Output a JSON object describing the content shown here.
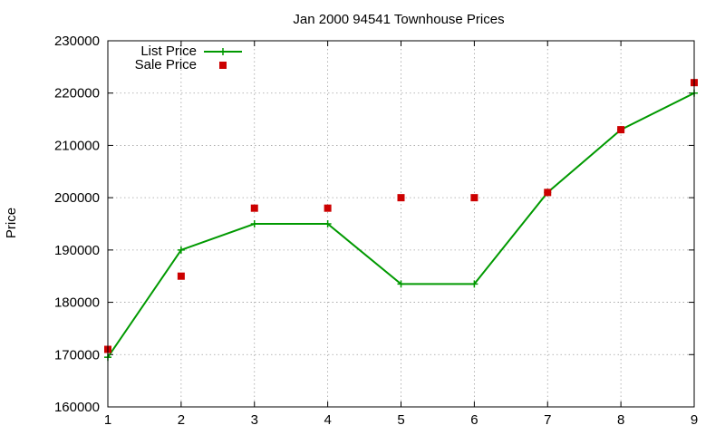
{
  "chart_data": {
    "type": "line",
    "title": "Jan 2000 94541 Townhouse Prices",
    "xlabel": "",
    "ylabel": "Price",
    "x": [
      1,
      2,
      3,
      4,
      5,
      6,
      7,
      8,
      9
    ],
    "xlim": [
      1,
      9
    ],
    "ylim": [
      160000,
      230000
    ],
    "x_ticks": [
      "1",
      "2",
      "3",
      "4",
      "5",
      "6",
      "7",
      "8",
      "9"
    ],
    "y_ticks": [
      "160000",
      "170000",
      "180000",
      "190000",
      "200000",
      "210000",
      "220000",
      "230000"
    ],
    "grid": true,
    "legend_position": "top-left",
    "series": [
      {
        "name": "List Price",
        "style": "line-with-plus-markers",
        "color": "#009900",
        "values": [
          169500,
          190000,
          195000,
          195000,
          183500,
          183500,
          201000,
          213000,
          220000
        ]
      },
      {
        "name": "Sale Price",
        "style": "square-markers",
        "color": "#cc0000",
        "values": [
          171000,
          185000,
          198000,
          198000,
          200000,
          200000,
          201000,
          213000,
          222000
        ]
      }
    ]
  }
}
